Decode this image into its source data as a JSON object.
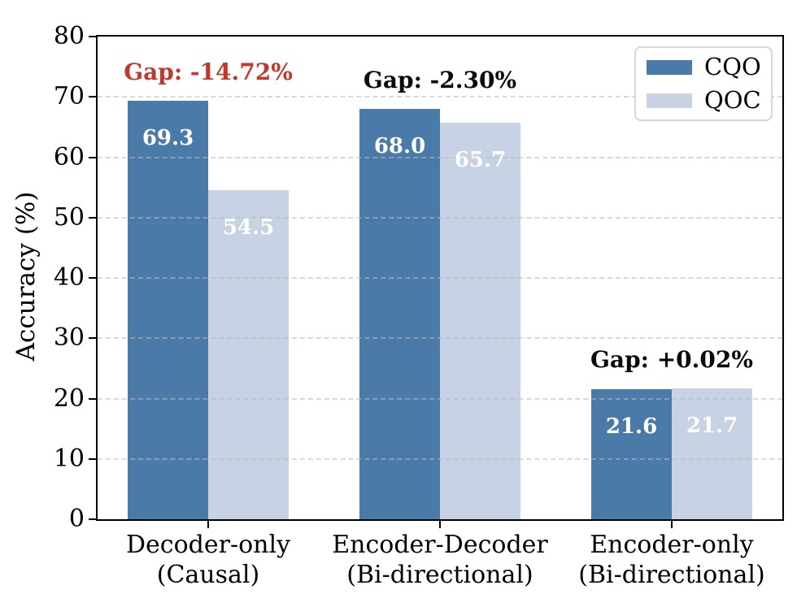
{
  "chart_data": {
    "type": "bar",
    "title": "",
    "xlabel": "",
    "ylabel": "Accuracy (%)",
    "ylim": [
      0,
      80
    ],
    "ytick_step": 10,
    "grid": "horizontal-dashed",
    "grid_over_bars": true,
    "legend_position": "upper right",
    "categories": [
      [
        "Decoder-only",
        "(Causal)"
      ],
      [
        "Encoder-Decoder",
        "(Bi-directional)"
      ],
      [
        "Encoder-only",
        "(Bi-directional)"
      ]
    ],
    "series": [
      {
        "name": "CQO",
        "color": "#4a7aa7",
        "values": [
          69.3,
          68.0,
          21.6
        ]
      },
      {
        "name": "QOC",
        "color": "#c7d3e4",
        "values": [
          54.5,
          65.7,
          21.7
        ]
      }
    ],
    "bar_value_label_color": "#ffffff",
    "annotations": [
      {
        "text": "Gap: -14.72%",
        "group": 0,
        "color": "#c0392b"
      },
      {
        "text": "Gap: -2.30%",
        "group": 1,
        "color": "#0a0a0a"
      },
      {
        "text": "Gap: +0.02%",
        "group": 2,
        "color": "#0a0a0a"
      }
    ],
    "colors": {
      "spine": "#000000",
      "gridline": "#dcdcdc",
      "tick_label": "#000000",
      "background": "#ffffff"
    }
  }
}
